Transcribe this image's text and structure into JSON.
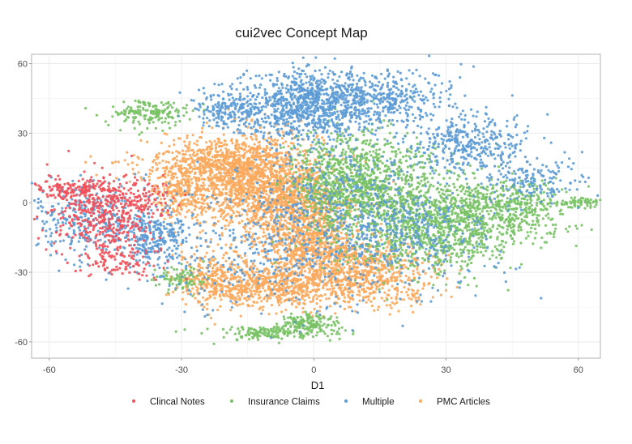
{
  "chart_data": {
    "type": "scatter",
    "title": "cui2vec Concept Map",
    "xlabel": "D1",
    "ylabel": "",
    "xlim": [
      -64,
      65
    ],
    "ylim": [
      -67,
      64
    ],
    "x_ticks": [
      -60,
      -30,
      0,
      30,
      60
    ],
    "y_ticks": [
      60,
      30,
      0,
      -30,
      -60
    ],
    "grid": true,
    "legend_position": "bottom",
    "series": [
      {
        "name": "Clincal Notes",
        "color": "#F0505A",
        "clusters": [
          {
            "cx": -48,
            "cy": -5,
            "sx": 6,
            "sy": 8,
            "n": 420
          },
          {
            "cx": -55,
            "cy": 6,
            "sx": 4,
            "sy": 2,
            "n": 120
          },
          {
            "cx": -44,
            "cy": -25,
            "sx": 5,
            "sy": 4,
            "n": 100
          },
          {
            "cx": -40,
            "cy": 2,
            "sx": 4,
            "sy": 4,
            "n": 90
          }
        ]
      },
      {
        "name": "Insurance Claims",
        "color": "#78C265",
        "clusters": [
          {
            "cx": 12,
            "cy": 5,
            "sx": 8,
            "sy": 13,
            "n": 900
          },
          {
            "cx": 28,
            "cy": -10,
            "sx": 9,
            "sy": 10,
            "n": 950
          },
          {
            "cx": 44,
            "cy": -2,
            "sx": 7,
            "sy": 6,
            "n": 420
          },
          {
            "cx": 5,
            "cy": 12,
            "sx": 5,
            "sy": 8,
            "n": 300
          },
          {
            "cx": -1,
            "cy": -52,
            "sx": 3,
            "sy": 2,
            "n": 150
          },
          {
            "cx": -10,
            "cy": -56,
            "sx": 7,
            "sy": 1.5,
            "n": 160
          },
          {
            "cx": -37,
            "cy": 38,
            "sx": 5,
            "sy": 3,
            "n": 170
          },
          {
            "cx": -31,
            "cy": -33,
            "sx": 3,
            "sy": 3,
            "n": 90
          },
          {
            "cx": 62,
            "cy": 0,
            "sx": 3,
            "sy": 1,
            "n": 70
          }
        ]
      },
      {
        "name": "Multiple",
        "color": "#5C9BD5",
        "clusters": [
          {
            "cx": -20,
            "cy": 40,
            "sx": 4,
            "sy": 4,
            "n": 180
          },
          {
            "cx": -2,
            "cy": 42,
            "sx": 8,
            "sy": 8,
            "n": 900
          },
          {
            "cx": 15,
            "cy": 45,
            "sx": 8,
            "sy": 6,
            "n": 380
          },
          {
            "cx": -36,
            "cy": -15,
            "sx": 4,
            "sy": 6,
            "n": 260
          },
          {
            "cx": 35,
            "cy": 25,
            "sx": 7,
            "sy": 6,
            "n": 360
          },
          {
            "cx": 50,
            "cy": 10,
            "sx": 6,
            "sy": 5,
            "n": 160
          },
          {
            "cx": 20,
            "cy": -15,
            "sx": 12,
            "sy": 12,
            "n": 380
          },
          {
            "cx": -52,
            "cy": -8,
            "sx": 8,
            "sy": 8,
            "n": 320
          },
          {
            "cx": -10,
            "cy": -20,
            "sx": 15,
            "sy": 15,
            "n": 330
          },
          {
            "cx": 5,
            "cy": 0,
            "sx": 12,
            "sy": 15,
            "n": 330
          }
        ]
      },
      {
        "name": "PMC Articles",
        "color": "#FBA85C",
        "clusters": [
          {
            "cx": -14,
            "cy": 10,
            "sx": 8,
            "sy": 10,
            "n": 1200
          },
          {
            "cx": -4,
            "cy": -5,
            "sx": 7,
            "sy": 10,
            "n": 900
          },
          {
            "cx": -22,
            "cy": 17,
            "sx": 9,
            "sy": 5,
            "n": 500
          },
          {
            "cx": -10,
            "cy": -35,
            "sx": 8,
            "sy": 5,
            "n": 700
          },
          {
            "cx": 12,
            "cy": -30,
            "sx": 8,
            "sy": 7,
            "n": 700
          },
          {
            "cx": -24,
            "cy": -32,
            "sx": 4,
            "sy": 6,
            "n": 200
          },
          {
            "cx": -30,
            "cy": 3,
            "sx": 3,
            "sy": 5,
            "n": 200
          },
          {
            "cx": 1,
            "cy": -20,
            "sx": 5,
            "sy": 5,
            "n": 300
          }
        ]
      }
    ]
  }
}
